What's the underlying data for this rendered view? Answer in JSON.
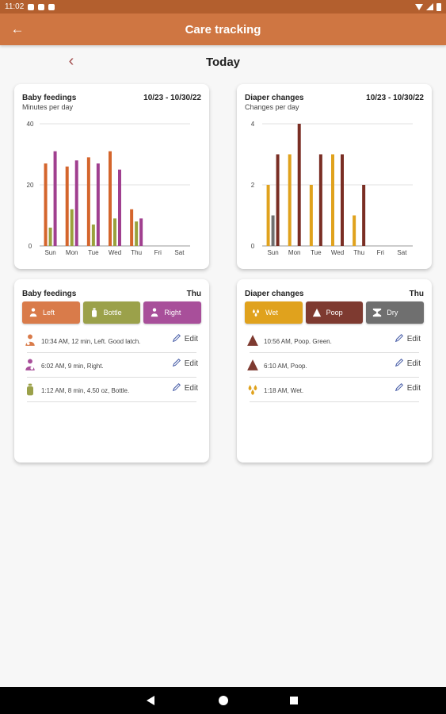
{
  "status_bar": {
    "time": "11:02"
  },
  "app_bar": {
    "title": "Care tracking"
  },
  "date_nav": {
    "label": "Today"
  },
  "feedings_chart": {
    "title": "Baby feedings",
    "subtitle": "Minutes per day",
    "range": "10/23 - 10/30/22"
  },
  "diapers_chart": {
    "title": "Diaper changes",
    "subtitle": "Changes per day",
    "range": "10/23 - 10/30/22"
  },
  "chart_data": [
    {
      "type": "bar",
      "title": "Baby feedings",
      "subtitle": "Minutes per day",
      "categories": [
        "Sun",
        "Mon",
        "Tue",
        "Wed",
        "Thu",
        "Fri",
        "Sat"
      ],
      "y_ticks": [
        0,
        20,
        40
      ],
      "ylim": [
        0,
        40
      ],
      "grid": true,
      "series": [
        {
          "name": "Left",
          "color": "#d4652c",
          "values": [
            27,
            26,
            29,
            31,
            12,
            0,
            0
          ]
        },
        {
          "name": "Bottle",
          "color": "#9aa13c",
          "values": [
            6,
            12,
            7,
            9,
            8,
            0,
            0
          ]
        },
        {
          "name": "Right",
          "color": "#a03f8f",
          "values": [
            31,
            28,
            27,
            25,
            9,
            0,
            0
          ]
        }
      ]
    },
    {
      "type": "bar",
      "title": "Diaper changes",
      "subtitle": "Changes per day",
      "categories": [
        "Sun",
        "Mon",
        "Tue",
        "Wed",
        "Thu",
        "Fri",
        "Sat"
      ],
      "y_ticks": [
        0,
        2,
        4
      ],
      "ylim": [
        0,
        4
      ],
      "grid": true,
      "series": [
        {
          "name": "Wet",
          "color": "#e0a21d",
          "values": [
            2,
            3,
            2,
            3,
            1,
            0,
            0
          ]
        },
        {
          "name": "Dry",
          "color": "#707070",
          "values": [
            1,
            0,
            0,
            0,
            0,
            0,
            0
          ]
        },
        {
          "name": "Poop",
          "color": "#7a2e24",
          "values": [
            3,
            4,
            3,
            3,
            2,
            0,
            0
          ]
        }
      ]
    }
  ],
  "feedings_list": {
    "title": "Baby feedings",
    "day": "Thu",
    "buttons": [
      {
        "label": "Left",
        "color": "#d97b4a",
        "icon": "breastfeed-left-icon"
      },
      {
        "label": "Bottle",
        "color": "#9ba14a",
        "icon": "bottle-icon"
      },
      {
        "label": "Right",
        "color": "#a84f9a",
        "icon": "breastfeed-right-icon"
      }
    ],
    "entries": [
      {
        "text": "10:34 AM, 12 min, Left. Good latch.",
        "icon": "breastfeed-left-icon",
        "icon_color": "#d97b4a",
        "edit": "Edit"
      },
      {
        "text": "6:02 AM, 9 min, Right.",
        "icon": "breastfeed-right-icon",
        "icon_color": "#a84f9a",
        "edit": "Edit"
      },
      {
        "text": "1:12 AM, 8 min, 4.50 oz, Bottle.",
        "icon": "bottle-icon",
        "icon_color": "#9ba14a",
        "edit": "Edit"
      }
    ]
  },
  "diapers_list": {
    "title": "Diaper changes",
    "day": "Thu",
    "buttons": [
      {
        "label": "Wet",
        "color": "#e0a21d",
        "icon": "droplets-icon"
      },
      {
        "label": "Poop",
        "color": "#7e3a30",
        "icon": "poop-icon"
      },
      {
        "label": "Dry",
        "color": "#6f6f6f",
        "icon": "dry-diaper-icon"
      }
    ],
    "entries": [
      {
        "text": "10:56 AM, Poop. Green.",
        "icon": "poop-icon",
        "icon_color": "#7e3a30",
        "edit": "Edit"
      },
      {
        "text": "6:10 AM, Poop.",
        "icon": "poop-icon",
        "icon_color": "#7e3a30",
        "edit": "Edit"
      },
      {
        "text": "1:18 AM, Wet.",
        "icon": "droplets-icon",
        "icon_color": "#e0a21d",
        "edit": "Edit"
      }
    ]
  }
}
